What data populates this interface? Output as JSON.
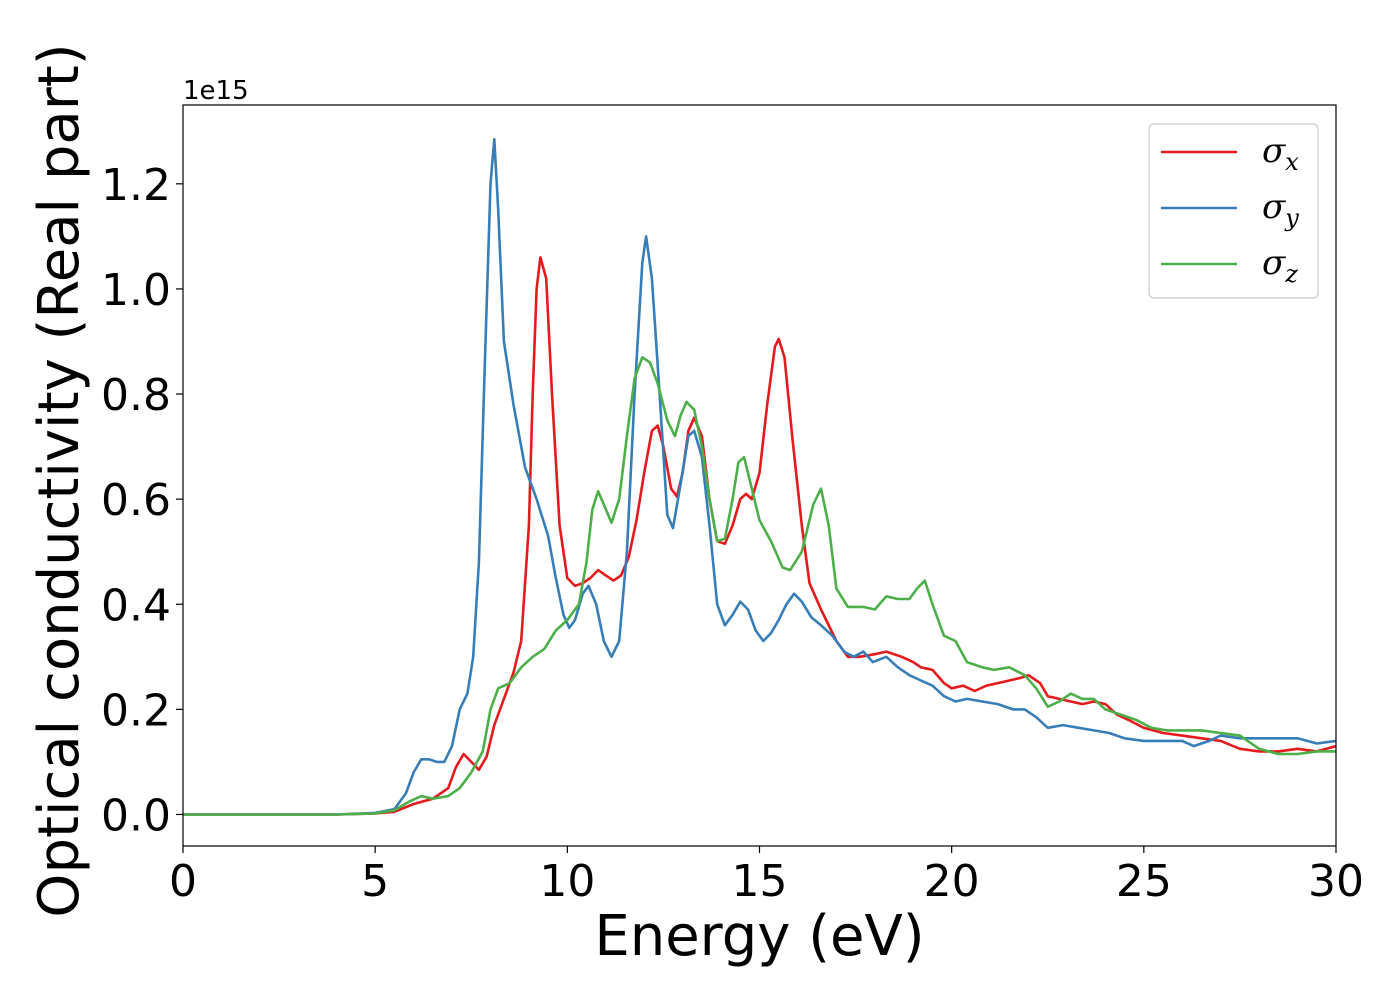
{
  "chart_data": {
    "type": "line",
    "xlabel": "Energy (eV)",
    "ylabel": "Optical conductivity (Real part)",
    "y_offset_text": "1e15",
    "xlim": [
      0,
      30
    ],
    "ylim": [
      -0.06,
      1.35
    ],
    "x_ticks": [
      "0",
      "5",
      "10",
      "15",
      "20",
      "25",
      "30"
    ],
    "y_ticks": [
      "0.0",
      "0.2",
      "0.4",
      "0.6",
      "0.8",
      "1.0",
      "1.2"
    ],
    "grid": false,
    "legend_position": "top-right",
    "series": [
      {
        "name": "σx",
        "symbol": "σ",
        "subscript": "x",
        "color": "#e41a1c",
        "points": [
          [
            0,
            0.0
          ],
          [
            4.0,
            0.0
          ],
          [
            5.0,
            0.002
          ],
          [
            5.5,
            0.005
          ],
          [
            6.0,
            0.02
          ],
          [
            6.5,
            0.03
          ],
          [
            6.9,
            0.05
          ],
          [
            7.1,
            0.09
          ],
          [
            7.3,
            0.115
          ],
          [
            7.5,
            0.1
          ],
          [
            7.7,
            0.085
          ],
          [
            7.9,
            0.11
          ],
          [
            8.1,
            0.17
          ],
          [
            8.3,
            0.21
          ],
          [
            8.6,
            0.27
          ],
          [
            8.8,
            0.33
          ],
          [
            9.0,
            0.55
          ],
          [
            9.1,
            0.8
          ],
          [
            9.2,
            1.0
          ],
          [
            9.3,
            1.06
          ],
          [
            9.45,
            1.02
          ],
          [
            9.6,
            0.8
          ],
          [
            9.8,
            0.55
          ],
          [
            10.0,
            0.45
          ],
          [
            10.2,
            0.435
          ],
          [
            10.4,
            0.44
          ],
          [
            10.6,
            0.45
          ],
          [
            10.8,
            0.465
          ],
          [
            11.0,
            0.455
          ],
          [
            11.2,
            0.445
          ],
          [
            11.4,
            0.455
          ],
          [
            11.6,
            0.49
          ],
          [
            11.8,
            0.56
          ],
          [
            12.0,
            0.65
          ],
          [
            12.2,
            0.73
          ],
          [
            12.35,
            0.74
          ],
          [
            12.5,
            0.7
          ],
          [
            12.7,
            0.62
          ],
          [
            12.85,
            0.605
          ],
          [
            13.0,
            0.65
          ],
          [
            13.15,
            0.73
          ],
          [
            13.3,
            0.755
          ],
          [
            13.5,
            0.72
          ],
          [
            13.7,
            0.6
          ],
          [
            13.9,
            0.52
          ],
          [
            14.1,
            0.515
          ],
          [
            14.3,
            0.55
          ],
          [
            14.5,
            0.6
          ],
          [
            14.65,
            0.61
          ],
          [
            14.8,
            0.6
          ],
          [
            15.0,
            0.65
          ],
          [
            15.2,
            0.78
          ],
          [
            15.4,
            0.89
          ],
          [
            15.5,
            0.905
          ],
          [
            15.65,
            0.87
          ],
          [
            15.85,
            0.72
          ],
          [
            16.1,
            0.55
          ],
          [
            16.3,
            0.44
          ],
          [
            16.6,
            0.39
          ],
          [
            17.0,
            0.33
          ],
          [
            17.3,
            0.3
          ],
          [
            17.6,
            0.3
          ],
          [
            18.0,
            0.305
          ],
          [
            18.3,
            0.31
          ],
          [
            18.7,
            0.3
          ],
          [
            19.0,
            0.29
          ],
          [
            19.2,
            0.28
          ],
          [
            19.5,
            0.275
          ],
          [
            19.8,
            0.25
          ],
          [
            20.0,
            0.24
          ],
          [
            20.3,
            0.245
          ],
          [
            20.6,
            0.235
          ],
          [
            20.9,
            0.245
          ],
          [
            21.2,
            0.25
          ],
          [
            21.5,
            0.255
          ],
          [
            21.8,
            0.26
          ],
          [
            22.0,
            0.265
          ],
          [
            22.3,
            0.25
          ],
          [
            22.5,
            0.225
          ],
          [
            22.8,
            0.22
          ],
          [
            23.1,
            0.215
          ],
          [
            23.4,
            0.21
          ],
          [
            23.7,
            0.215
          ],
          [
            24.0,
            0.21
          ],
          [
            24.3,
            0.19
          ],
          [
            24.6,
            0.18
          ],
          [
            25.0,
            0.165
          ],
          [
            25.5,
            0.155
          ],
          [
            26.0,
            0.15
          ],
          [
            26.5,
            0.145
          ],
          [
            27.0,
            0.14
          ],
          [
            27.5,
            0.125
          ],
          [
            28.0,
            0.12
          ],
          [
            28.5,
            0.12
          ],
          [
            29.0,
            0.125
          ],
          [
            29.5,
            0.12
          ],
          [
            30.0,
            0.13
          ]
        ]
      },
      {
        "name": "σy",
        "symbol": "σ",
        "subscript": "y",
        "color": "#377eb8",
        "points": [
          [
            0,
            0.0
          ],
          [
            4.0,
            0.0
          ],
          [
            5.0,
            0.003
          ],
          [
            5.5,
            0.01
          ],
          [
            5.8,
            0.04
          ],
          [
            6.0,
            0.08
          ],
          [
            6.2,
            0.105
          ],
          [
            6.4,
            0.105
          ],
          [
            6.6,
            0.1
          ],
          [
            6.8,
            0.1
          ],
          [
            7.0,
            0.13
          ],
          [
            7.2,
            0.2
          ],
          [
            7.4,
            0.23
          ],
          [
            7.55,
            0.3
          ],
          [
            7.7,
            0.48
          ],
          [
            7.85,
            0.85
          ],
          [
            8.0,
            1.2
          ],
          [
            8.1,
            1.285
          ],
          [
            8.2,
            1.15
          ],
          [
            8.35,
            0.9
          ],
          [
            8.6,
            0.78
          ],
          [
            8.9,
            0.66
          ],
          [
            9.2,
            0.6
          ],
          [
            9.5,
            0.53
          ],
          [
            9.7,
            0.45
          ],
          [
            9.9,
            0.38
          ],
          [
            10.05,
            0.355
          ],
          [
            10.2,
            0.37
          ],
          [
            10.4,
            0.42
          ],
          [
            10.55,
            0.435
          ],
          [
            10.75,
            0.4
          ],
          [
            10.95,
            0.33
          ],
          [
            11.15,
            0.3
          ],
          [
            11.35,
            0.33
          ],
          [
            11.55,
            0.5
          ],
          [
            11.75,
            0.8
          ],
          [
            11.95,
            1.05
          ],
          [
            12.05,
            1.1
          ],
          [
            12.2,
            1.02
          ],
          [
            12.4,
            0.8
          ],
          [
            12.6,
            0.57
          ],
          [
            12.75,
            0.545
          ],
          [
            12.95,
            0.63
          ],
          [
            13.15,
            0.72
          ],
          [
            13.3,
            0.73
          ],
          [
            13.5,
            0.68
          ],
          [
            13.7,
            0.55
          ],
          [
            13.9,
            0.4
          ],
          [
            14.1,
            0.36
          ],
          [
            14.3,
            0.38
          ],
          [
            14.5,
            0.405
          ],
          [
            14.7,
            0.39
          ],
          [
            14.9,
            0.35
          ],
          [
            15.1,
            0.33
          ],
          [
            15.3,
            0.345
          ],
          [
            15.5,
            0.37
          ],
          [
            15.7,
            0.4
          ],
          [
            15.9,
            0.42
          ],
          [
            16.1,
            0.405
          ],
          [
            16.35,
            0.375
          ],
          [
            16.6,
            0.36
          ],
          [
            16.9,
            0.34
          ],
          [
            17.2,
            0.31
          ],
          [
            17.45,
            0.3
          ],
          [
            17.7,
            0.31
          ],
          [
            17.95,
            0.29
          ],
          [
            18.3,
            0.3
          ],
          [
            18.6,
            0.28
          ],
          [
            18.9,
            0.265
          ],
          [
            19.2,
            0.255
          ],
          [
            19.5,
            0.245
          ],
          [
            19.8,
            0.225
          ],
          [
            20.1,
            0.215
          ],
          [
            20.4,
            0.22
          ],
          [
            20.8,
            0.215
          ],
          [
            21.2,
            0.21
          ],
          [
            21.6,
            0.2
          ],
          [
            21.9,
            0.2
          ],
          [
            22.2,
            0.185
          ],
          [
            22.5,
            0.165
          ],
          [
            22.9,
            0.17
          ],
          [
            23.3,
            0.165
          ],
          [
            23.7,
            0.16
          ],
          [
            24.1,
            0.155
          ],
          [
            24.5,
            0.145
          ],
          [
            25.0,
            0.14
          ],
          [
            25.5,
            0.14
          ],
          [
            26.0,
            0.14
          ],
          [
            26.3,
            0.13
          ],
          [
            26.7,
            0.14
          ],
          [
            27.0,
            0.15
          ],
          [
            27.5,
            0.145
          ],
          [
            28.0,
            0.145
          ],
          [
            28.5,
            0.145
          ],
          [
            29.0,
            0.145
          ],
          [
            29.5,
            0.135
          ],
          [
            30.0,
            0.14
          ]
        ]
      },
      {
        "name": "σz",
        "symbol": "σ",
        "subscript": "z",
        "color": "#4daf4a",
        "points": [
          [
            0,
            0.0
          ],
          [
            4.0,
            0.0
          ],
          [
            5.0,
            0.002
          ],
          [
            5.5,
            0.008
          ],
          [
            5.9,
            0.025
          ],
          [
            6.2,
            0.035
          ],
          [
            6.5,
            0.03
          ],
          [
            6.9,
            0.035
          ],
          [
            7.2,
            0.05
          ],
          [
            7.5,
            0.08
          ],
          [
            7.8,
            0.12
          ],
          [
            8.0,
            0.2
          ],
          [
            8.2,
            0.24
          ],
          [
            8.5,
            0.25
          ],
          [
            8.8,
            0.28
          ],
          [
            9.1,
            0.3
          ],
          [
            9.4,
            0.315
          ],
          [
            9.7,
            0.35
          ],
          [
            10.0,
            0.37
          ],
          [
            10.3,
            0.4
          ],
          [
            10.5,
            0.48
          ],
          [
            10.65,
            0.58
          ],
          [
            10.8,
            0.615
          ],
          [
            10.95,
            0.59
          ],
          [
            11.15,
            0.555
          ],
          [
            11.35,
            0.6
          ],
          [
            11.55,
            0.72
          ],
          [
            11.75,
            0.83
          ],
          [
            11.95,
            0.87
          ],
          [
            12.15,
            0.86
          ],
          [
            12.35,
            0.82
          ],
          [
            12.6,
            0.75
          ],
          [
            12.8,
            0.72
          ],
          [
            12.95,
            0.76
          ],
          [
            13.1,
            0.785
          ],
          [
            13.3,
            0.77
          ],
          [
            13.5,
            0.7
          ],
          [
            13.7,
            0.6
          ],
          [
            13.9,
            0.52
          ],
          [
            14.1,
            0.525
          ],
          [
            14.3,
            0.6
          ],
          [
            14.45,
            0.67
          ],
          [
            14.6,
            0.68
          ],
          [
            14.8,
            0.62
          ],
          [
            15.0,
            0.56
          ],
          [
            15.3,
            0.52
          ],
          [
            15.6,
            0.47
          ],
          [
            15.8,
            0.465
          ],
          [
            16.1,
            0.5
          ],
          [
            16.4,
            0.59
          ],
          [
            16.6,
            0.62
          ],
          [
            16.8,
            0.55
          ],
          [
            17.0,
            0.43
          ],
          [
            17.3,
            0.395
          ],
          [
            17.7,
            0.395
          ],
          [
            18.0,
            0.39
          ],
          [
            18.3,
            0.415
          ],
          [
            18.6,
            0.41
          ],
          [
            18.9,
            0.41
          ],
          [
            19.1,
            0.43
          ],
          [
            19.3,
            0.445
          ],
          [
            19.5,
            0.4
          ],
          [
            19.8,
            0.34
          ],
          [
            20.1,
            0.33
          ],
          [
            20.4,
            0.29
          ],
          [
            20.8,
            0.28
          ],
          [
            21.1,
            0.275
          ],
          [
            21.5,
            0.28
          ],
          [
            21.9,
            0.265
          ],
          [
            22.2,
            0.24
          ],
          [
            22.5,
            0.205
          ],
          [
            22.8,
            0.215
          ],
          [
            23.1,
            0.23
          ],
          [
            23.4,
            0.22
          ],
          [
            23.7,
            0.22
          ],
          [
            24.0,
            0.2
          ],
          [
            24.4,
            0.19
          ],
          [
            24.8,
            0.18
          ],
          [
            25.2,
            0.165
          ],
          [
            25.6,
            0.16
          ],
          [
            26.0,
            0.16
          ],
          [
            26.5,
            0.16
          ],
          [
            27.0,
            0.155
          ],
          [
            27.5,
            0.15
          ],
          [
            28.0,
            0.125
          ],
          [
            28.5,
            0.115
          ],
          [
            29.0,
            0.115
          ],
          [
            29.5,
            0.12
          ],
          [
            30.0,
            0.12
          ]
        ]
      }
    ]
  }
}
